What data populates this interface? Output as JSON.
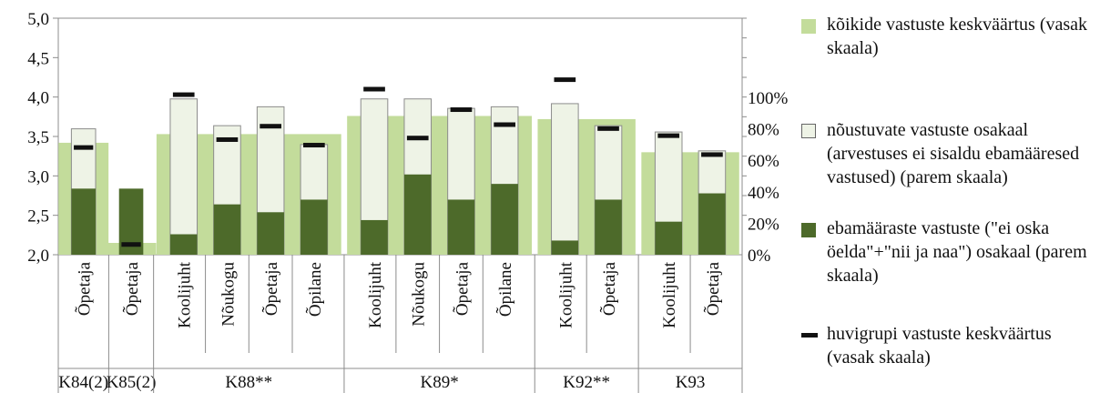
{
  "chart_data": {
    "type": "bar",
    "left_axis": {
      "min": 2.0,
      "max": 5.0,
      "step": 0.5,
      "tick_labels": [
        "2,0",
        "2,5",
        "3,0",
        "3,5",
        "4,0",
        "4,5",
        "5,0"
      ]
    },
    "right_axis": {
      "min_pct": 0,
      "max_pct": 100,
      "step_pct": 20,
      "tick_labels": [
        "0%",
        "20%",
        "40%",
        "60%",
        "80%",
        "100%"
      ]
    },
    "groups": [
      {
        "label": "K84(2)",
        "mean_all": 3.42,
        "members": [
          {
            "label": "Õpetaja",
            "agree_pct": 80,
            "uncertain_pct": 42,
            "group_mean": 3.36
          }
        ]
      },
      {
        "label": "K85(2)",
        "mean_all": 2.15,
        "members": [
          {
            "label": "Õpetaja",
            "agree_pct": 0,
            "uncertain_pct": 42,
            "group_mean": 2.13
          }
        ]
      },
      {
        "label": "K88**",
        "mean_all": 3.53,
        "members": [
          {
            "label": "Koolijuht",
            "agree_pct": 99,
            "uncertain_pct": 13,
            "group_mean": 4.03
          },
          {
            "label": "Nõukogu",
            "agree_pct": 82,
            "uncertain_pct": 32,
            "group_mean": 3.46
          },
          {
            "label": "Õpetaja",
            "agree_pct": 94,
            "uncertain_pct": 27,
            "group_mean": 3.63
          },
          {
            "label": "Õpilane",
            "agree_pct": 70,
            "uncertain_pct": 35,
            "group_mean": 3.39
          }
        ]
      },
      {
        "label": "K89*",
        "mean_all": 3.76,
        "members": [
          {
            "label": "Koolijuht",
            "agree_pct": 99,
            "uncertain_pct": 22,
            "group_mean": 4.1
          },
          {
            "label": "Nõukogu",
            "agree_pct": 99,
            "uncertain_pct": 51,
            "group_mean": 3.48
          },
          {
            "label": "Õpetaja",
            "agree_pct": 93,
            "uncertain_pct": 35,
            "group_mean": 3.84
          },
          {
            "label": "Õpilane",
            "agree_pct": 94,
            "uncertain_pct": 45,
            "group_mean": 3.65
          }
        ]
      },
      {
        "label": "K92**",
        "mean_all": 3.72,
        "members": [
          {
            "label": "Koolijuht",
            "agree_pct": 96,
            "uncertain_pct": 9,
            "group_mean": 4.22
          },
          {
            "label": "Õpetaja",
            "agree_pct": 82,
            "uncertain_pct": 35,
            "group_mean": 3.6
          }
        ]
      },
      {
        "label": "K93",
        "mean_all": 3.3,
        "members": [
          {
            "label": "Koolijuht",
            "agree_pct": 78,
            "uncertain_pct": 21,
            "group_mean": 3.51
          },
          {
            "label": "Õpetaja",
            "agree_pct": 66,
            "uncertain_pct": 39,
            "group_mean": 3.27
          }
        ]
      }
    ],
    "colors": {
      "mean_all": "#c3dc9b",
      "agree": "#eef3e6",
      "uncertain": "#4d6a2a",
      "group_mean": "#111111"
    }
  },
  "legend": {
    "mean_all": "kõikide vastuste keskväärtus (vasak skaala)",
    "agree": "nõustuvate vastuste osakaal (arvestuses ei sisaldu ebamääresed vastused) (parem skaala)",
    "uncertain": "ebamääraste vastuste (\"ei oska öelda\"+\"nii ja naa\") osakaal (parem skaala)",
    "group_mean": "huvigrupi vastuste keskväärtus (vasak skaala)"
  }
}
